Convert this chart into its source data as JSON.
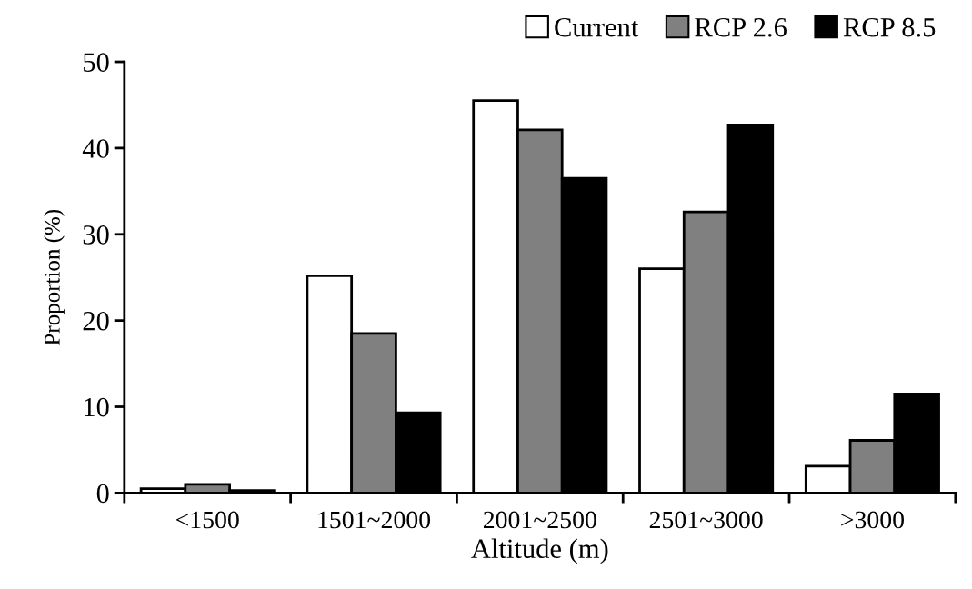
{
  "chart_data": {
    "type": "bar",
    "xlabel": "Altitude (m)",
    "ylabel": "Proportion (%)",
    "categories": [
      "<1500",
      "1501~2000",
      "2001~2500",
      "2501~3000",
      ">3000"
    ],
    "series": [
      {
        "name": "Current",
        "color": "#ffffff",
        "values": [
          0.5,
          25.2,
          45.5,
          26.0,
          3.1
        ]
      },
      {
        "name": "RCP 2.6",
        "color": "#808080",
        "values": [
          1.0,
          18.5,
          42.1,
          32.6,
          6.1
        ]
      },
      {
        "name": "RCP 8.5",
        "color": "#000000",
        "values": [
          0.3,
          9.3,
          36.5,
          42.7,
          11.5
        ]
      }
    ],
    "ylim": [
      0,
      50
    ],
    "yticks": [
      0,
      10,
      20,
      30,
      40,
      50
    ],
    "grid": false,
    "legend": "top right"
  }
}
